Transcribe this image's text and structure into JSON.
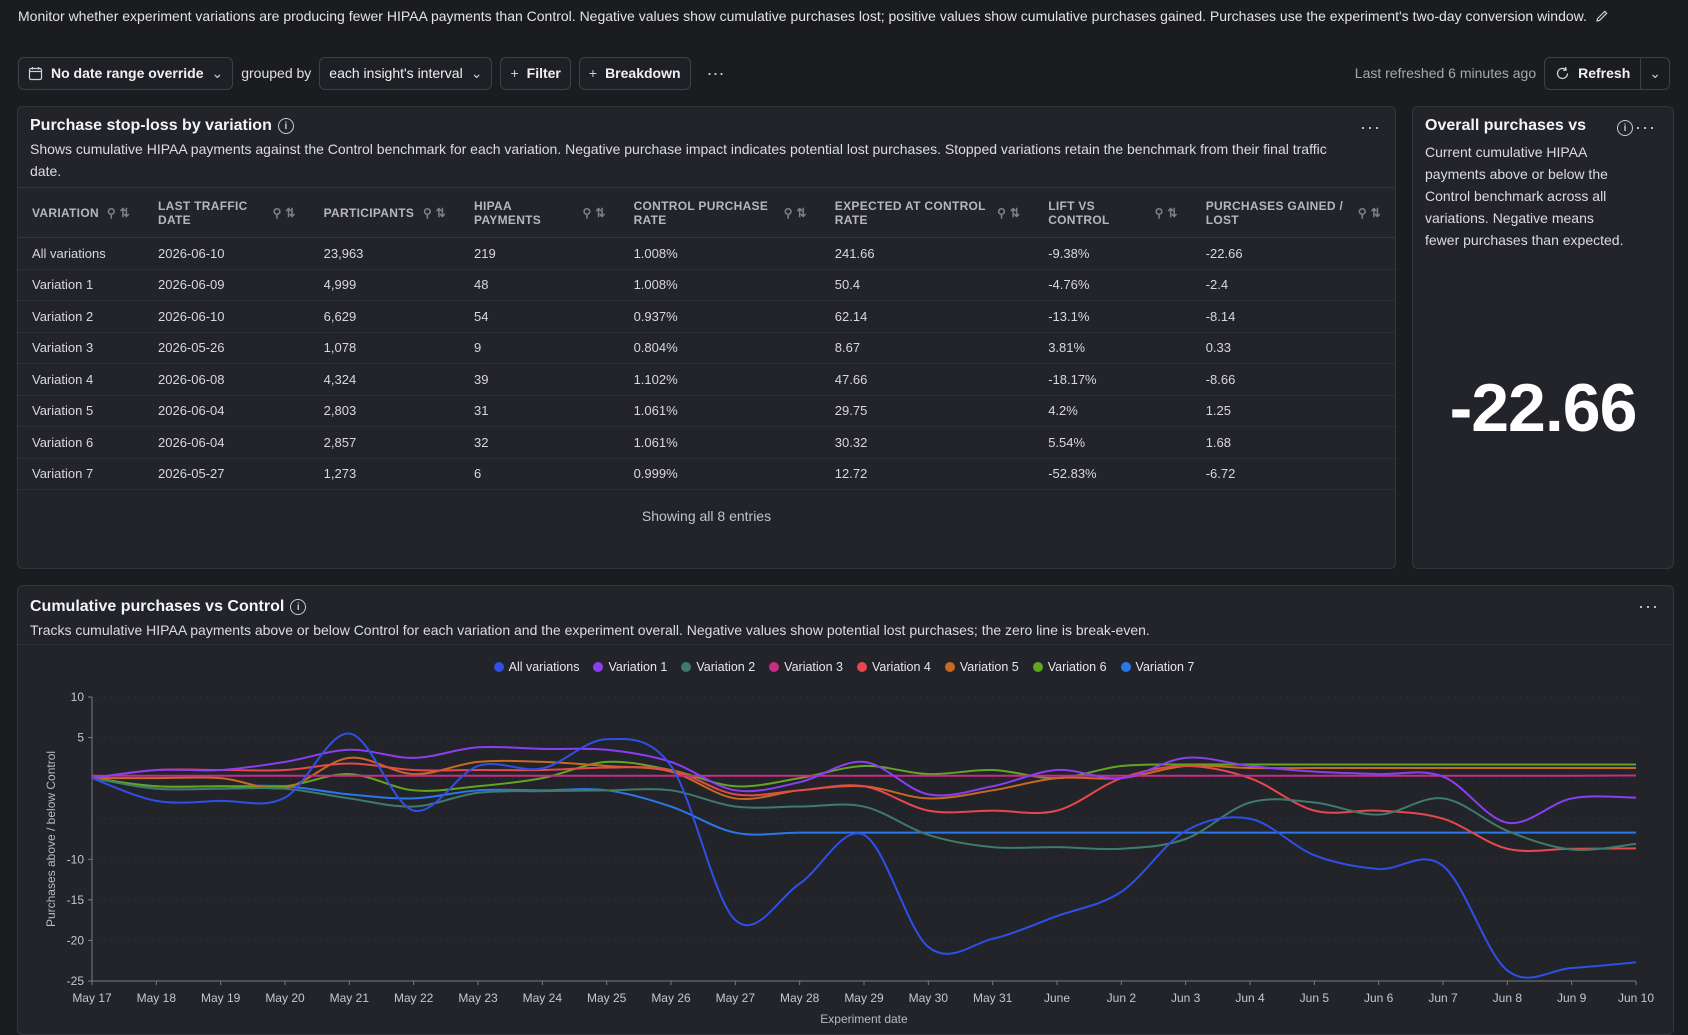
{
  "header": {
    "description": "Monitor whether experiment variations are producing fewer HIPAA payments than Control. Negative values show cumulative purchases lost; positive values show cumulative purchases gained. Purchases use the experiment's two-day conversion window."
  },
  "toolbar": {
    "date_range_label": "No date range override",
    "grouped_by_label": "grouped by",
    "interval_label": "each insight's interval",
    "filter_label": "Filter",
    "breakdown_label": "Breakdown",
    "last_refreshed": "Last refreshed 6 minutes ago",
    "refresh_label": "Refresh"
  },
  "table_card": {
    "title": "Purchase stop-loss by variation",
    "description": "Shows cumulative HIPAA payments against the Control benchmark for each variation. Negative purchase impact indicates potential lost purchases. Stopped variations retain the benchmark from their final traffic date.",
    "columns": [
      "VARIATION",
      "LAST TRAFFIC DATE",
      "PARTICIPANTS",
      "HIPAA PAYMENTS",
      "CONTROL PURCHASE RATE",
      "EXPECTED AT CONTROL RATE",
      "LIFT VS CONTROL",
      "PURCHASES GAINED / LOST"
    ],
    "rows": [
      [
        "All variations",
        "2026-06-10",
        "23,963",
        "219",
        "1.008%",
        "241.66",
        "-9.38%",
        "-22.66"
      ],
      [
        "Variation 1",
        "2026-06-09",
        "4,999",
        "48",
        "1.008%",
        "50.4",
        "-4.76%",
        "-2.4"
      ],
      [
        "Variation 2",
        "2026-06-10",
        "6,629",
        "54",
        "0.937%",
        "62.14",
        "-13.1%",
        "-8.14"
      ],
      [
        "Variation 3",
        "2026-05-26",
        "1,078",
        "9",
        "0.804%",
        "8.67",
        "3.81%",
        "0.33"
      ],
      [
        "Variation 4",
        "2026-06-08",
        "4,324",
        "39",
        "1.102%",
        "47.66",
        "-18.17%",
        "-8.66"
      ],
      [
        "Variation 5",
        "2026-06-04",
        "2,803",
        "31",
        "1.061%",
        "29.75",
        "4.2%",
        "1.25"
      ],
      [
        "Variation 6",
        "2026-06-04",
        "2,857",
        "32",
        "1.061%",
        "30.32",
        "5.54%",
        "1.68"
      ],
      [
        "Variation 7",
        "2026-05-27",
        "1,273",
        "6",
        "0.999%",
        "12.72",
        "-52.83%",
        "-6.72"
      ]
    ],
    "footer": "Showing all 8 entries"
  },
  "overall_card": {
    "title": "Overall purchases vs",
    "description": "Current cumulative HIPAA payments above or below the Control benchmark across all variations. Negative means fewer purchases than expected.",
    "value": "-22.66"
  },
  "chart_card": {
    "title": "Cumulative purchases vs Control",
    "description": "Tracks cumulative HIPAA payments above or below Control for each variation and the experiment overall. Negative values show potential lost purchases; the zero line is break-even."
  },
  "colors": {
    "All variations": "#2f4fe6",
    "Variation 1": "#8b3ef2",
    "Variation 2": "#3f7a6c",
    "Variation 3": "#c72c86",
    "Variation 4": "#e5484d",
    "Variation 5": "#c76a1f",
    "Variation 6": "#5fa623",
    "Variation 7": "#2a78e8"
  },
  "chart_data": {
    "type": "line",
    "title": "Cumulative purchases vs Control",
    "xlabel": "Experiment date",
    "ylabel": "Purchases above / below Control",
    "ylim": [
      -25,
      10
    ],
    "yticks": [
      10,
      5,
      -10,
      -15,
      -20,
      -25
    ],
    "legend_position": "top-center",
    "x": [
      "May 17",
      "May 18",
      "May 19",
      "May 20",
      "May 21",
      "May 22",
      "May 23",
      "May 24",
      "May 25",
      "May 26",
      "May 27",
      "May 28",
      "May 29",
      "May 30",
      "May 31",
      "June",
      "Jun 2",
      "Jun 3",
      "Jun 4",
      "Jun 5",
      "Jun 6",
      "Jun 7",
      "Jun 8",
      "Jun 9",
      "Jun 10"
    ],
    "series": [
      {
        "name": "All variations",
        "values": [
          0,
          -2.8,
          -2.8,
          -2.4,
          5.5,
          -4,
          1.5,
          1.2,
          4.8,
          1.5,
          -17.5,
          -13,
          -7,
          -20.8,
          -19.8,
          -17,
          -14,
          -6.5,
          -5,
          -9.5,
          -11.2,
          -10.8,
          -23.7,
          -23.4,
          -22.7
        ]
      },
      {
        "name": "Variation 1",
        "values": [
          0,
          1,
          1,
          2,
          3.5,
          2.5,
          3.8,
          3.6,
          3.5,
          2,
          -1.5,
          -0.5,
          2,
          -2,
          -1,
          1,
          0,
          2.5,
          1.5,
          0.8,
          0.5,
          0.2,
          -5.5,
          -2.5,
          -2.4
        ]
      },
      {
        "name": "Variation 2",
        "values": [
          0,
          -1.3,
          -1.3,
          -1.3,
          -2.5,
          -3.5,
          -1.8,
          -1.6,
          -1.5,
          -1.5,
          -3.5,
          -3.5,
          -3.5,
          -7,
          -8.5,
          -8.5,
          -8.7,
          -7.5,
          -3,
          -3,
          -4.5,
          -2.5,
          -6.5,
          -8.8,
          -8.1
        ]
      },
      {
        "name": "Variation 3",
        "values": [
          0.3,
          0.3,
          0.3,
          0.3,
          0.3,
          0.3,
          0.3,
          0.3,
          0.3,
          0.3,
          0.3,
          0.3,
          0.3,
          0.3,
          0.3,
          0.3,
          0.3,
          0.3,
          0.3,
          0.3,
          0.3,
          0.3,
          0.3,
          0.3,
          0.33
        ]
      },
      {
        "name": "Variation 4",
        "values": [
          0,
          1,
          1,
          1,
          1.8,
          1,
          1,
          1,
          1.3,
          1,
          -2,
          -1.5,
          -1,
          -4,
          -4,
          -4,
          0,
          1.5,
          0,
          -4,
          -4,
          -5,
          -8.7,
          -8.7,
          -8.66
        ]
      },
      {
        "name": "Variation 5",
        "values": [
          0,
          0,
          0,
          -1.2,
          2.5,
          0.5,
          2,
          2,
          1.5,
          0.8,
          -2.5,
          -1.5,
          -1,
          -2.5,
          -1.5,
          0,
          0,
          1.5,
          1.25,
          1.25,
          1.25,
          1.25,
          1.25,
          1.25,
          1.25
        ]
      },
      {
        "name": "Variation 6",
        "values": [
          0,
          -1,
          -1,
          -1,
          0.5,
          -1.5,
          -1,
          0,
          2,
          1,
          -1,
          0,
          1.5,
          0.5,
          1,
          0,
          1.5,
          1.68,
          1.68,
          1.68,
          1.68,
          1.68,
          1.68,
          1.68,
          1.68
        ]
      },
      {
        "name": "Variation 7",
        "values": [
          0,
          -1,
          -1,
          -1,
          -2,
          -2.5,
          -1.5,
          -1.5,
          -1.5,
          -3.5,
          -6.72,
          -6.72,
          -6.72,
          -6.72,
          -6.72,
          -6.72,
          -6.72,
          -6.72,
          -6.72,
          -6.72,
          -6.72,
          -6.72,
          -6.72,
          -6.72,
          -6.72
        ]
      }
    ]
  }
}
